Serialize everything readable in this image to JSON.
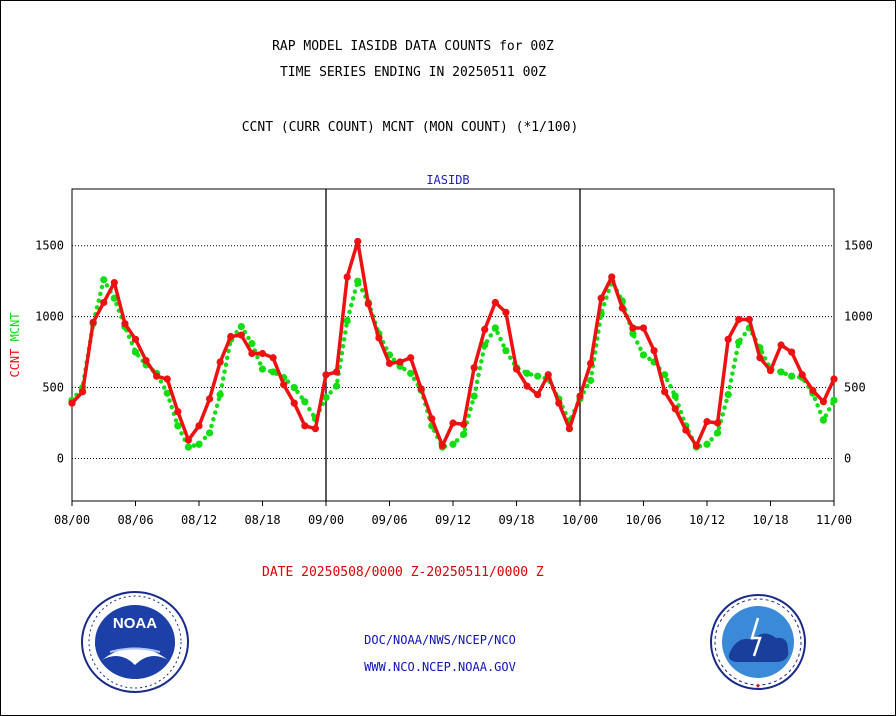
{
  "header": {
    "title_line1": "RAP MODEL IASIDB DATA COUNTS for 00Z",
    "title_line2": "TIME SERIES ENDING IN 20250511 00Z",
    "subtitle": "CCNT (CURR COUNT) MCNT (MON COUNT) (*1/100)"
  },
  "footer": {
    "date_range": "DATE 20250508/0000 Z-20250511/0000 Z",
    "credit_line1": "DOC/NOAA/NWS/NCEP/NCO",
    "credit_line2": "WWW.NCO.NCEP.NOAA.GOV",
    "noaa_logo_text": "NOAA",
    "nws_logo_text": "NATIONAL WEATHER SERVICE"
  },
  "colors": {
    "ccnt": "#ee1111",
    "mcnt": "#11dd11",
    "plot_title": "#2020c0",
    "date_text": "#e00000"
  },
  "chart_data": {
    "type": "line",
    "title": "IASIDB",
    "ylabel_parts": [
      {
        "text": "CCNT",
        "color": "#ee1111"
      },
      {
        "text": "MCNT",
        "color": "#11dd11"
      }
    ],
    "xlim": [
      0,
      72
    ],
    "ylim": [
      -300,
      1900
    ],
    "x_ticks": [
      0,
      6,
      12,
      18,
      24,
      30,
      36,
      42,
      48,
      54,
      60,
      66,
      72
    ],
    "x_tick_labels": [
      "08/00",
      "08/06",
      "08/12",
      "08/18",
      "09/00",
      "09/06",
      "09/12",
      "09/18",
      "10/00",
      "10/06",
      "10/12",
      "10/18",
      "11/00"
    ],
    "y_ticks": [
      0,
      500,
      1000,
      1500
    ],
    "y_tick_labels": [
      "0",
      "500",
      "1000",
      "1500"
    ],
    "gridlines": "horizontal-dotted",
    "day_boundaries": [
      24,
      48
    ],
    "x": [
      0,
      1,
      2,
      3,
      4,
      5,
      6,
      7,
      8,
      9,
      10,
      11,
      12,
      13,
      14,
      15,
      16,
      17,
      18,
      19,
      20,
      21,
      22,
      23,
      24,
      25,
      26,
      27,
      28,
      29,
      30,
      31,
      32,
      33,
      34,
      35,
      36,
      37,
      38,
      39,
      40,
      41,
      42,
      43,
      44,
      45,
      46,
      47,
      48,
      49,
      50,
      51,
      52,
      53,
      54,
      55,
      56,
      57,
      58,
      59,
      60,
      61,
      62,
      63,
      64,
      65,
      66,
      67,
      68,
      69,
      70,
      71,
      72
    ],
    "series": [
      {
        "name": "CCNT",
        "color": "#ee1111",
        "style": "solid",
        "values": [
          390,
          470,
          960,
          1100,
          1240,
          950,
          840,
          690,
          580,
          560,
          330,
          130,
          230,
          420,
          680,
          860,
          870,
          740,
          740,
          710,
          520,
          390,
          230,
          210,
          590,
          610,
          1280,
          1530,
          1090,
          850,
          670,
          680,
          710,
          490,
          280,
          90,
          250,
          240,
          640,
          910,
          1100,
          1030,
          630,
          510,
          450,
          590,
          390,
          210,
          440,
          670,
          1130,
          1280,
          1060,
          920,
          920,
          760,
          470,
          350,
          200,
          90,
          260,
          250,
          840,
          980,
          980,
          710,
          620,
          800,
          750,
          590,
          480,
          400,
          560
        ]
      },
      {
        "name": "MCNT",
        "color": "#11dd11",
        "style": "dotted",
        "values": [
          410,
          500,
          950,
          1260,
          1130,
          930,
          750,
          660,
          600,
          460,
          230,
          80,
          100,
          180,
          450,
          840,
          930,
          810,
          630,
          610,
          570,
          500,
          400,
          280,
          430,
          510,
          970,
          1250,
          1100,
          880,
          730,
          650,
          600,
          480,
          230,
          80,
          100,
          170,
          440,
          800,
          920,
          760,
          640,
          600,
          580,
          560,
          420,
          260,
          420,
          550,
          1020,
          1250,
          1110,
          880,
          730,
          680,
          590,
          440,
          230,
          80,
          100,
          180,
          450,
          820,
          920,
          780,
          630,
          610,
          580,
          570,
          460,
          270,
          410
        ]
      }
    ]
  }
}
